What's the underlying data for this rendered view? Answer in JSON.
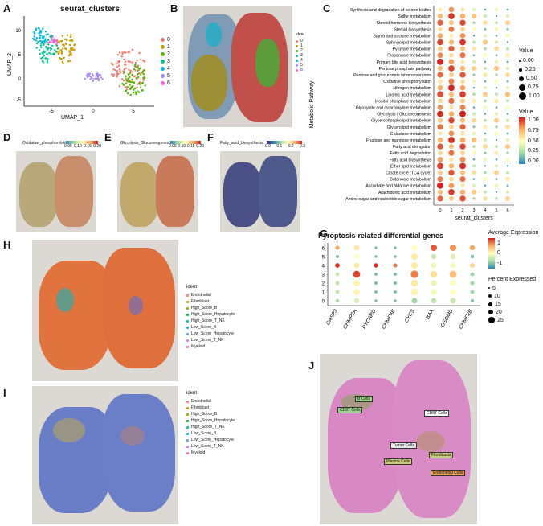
{
  "panels": {
    "A": "A",
    "B": "B",
    "C": "C",
    "D": "D",
    "E": "E",
    "F": "F",
    "G": "G",
    "H": "H",
    "I": "I",
    "J": "J"
  },
  "umap": {
    "title": "seurat_clusters",
    "xlabel": "UMAP_1",
    "ylabel": "UMAP_2",
    "xticks": [
      "-5",
      "0",
      "5"
    ],
    "yticks": [
      "10",
      "5",
      "0",
      "-5"
    ],
    "clusters": [
      {
        "label": "0",
        "color": "#f8766d"
      },
      {
        "label": "1",
        "color": "#c49a00"
      },
      {
        "label": "2",
        "color": "#53b400"
      },
      {
        "label": "3",
        "color": "#00c094"
      },
      {
        "label": "4",
        "color": "#00b6eb"
      },
      {
        "label": "5",
        "color": "#a58aff"
      },
      {
        "label": "6",
        "color": "#fb61d7"
      }
    ]
  },
  "spatial_b": {
    "legend_title": "ident",
    "legend": [
      "0",
      "1",
      "2",
      "3",
      "4",
      "5",
      "6"
    ]
  },
  "dotplot_c": {
    "ylabel": "Metabolic Pathway",
    "xlabel": "seurat_clusters",
    "clusters": [
      "0",
      "1",
      "2",
      "3",
      "4",
      "5",
      "6"
    ],
    "pathways": [
      "Synthesis and degradation of ketone bodies",
      "Sulfur metabolism",
      "Steroid hormone biosynthesis",
      "Steroid biosynthesis",
      "Starch and sucrose metabolism",
      "Sphingolipid metabolism",
      "Pyruvate metabolism",
      "Propanoate metabolism",
      "Primary bile acid biosynthesis",
      "Pentose phosphate pathway",
      "Pentose and glucuronate interconversions",
      "Oxidative phosphorylation",
      "Nitrogen metabolism",
      "Linoleic acid metabolism",
      "Inositol phosphate metabolism",
      "Glyoxylate and dicarboxylate metabolism",
      "Glycolysis / Gluconeogenesis",
      "Glycerophospholipid metabolism",
      "Glycerolipid metabolism",
      "Galactose metabolism",
      "Fructose and mannose metabolism",
      "Fatty acid elongation",
      "Fatty acid degradation",
      "Fatty acid biosynthesis",
      "Ether lipid metabolism",
      "Citrate cycle (TCA cycle)",
      "Butanoate metabolism",
      "Ascorbate and aldarate metabolism",
      "Arachidonic acid metabolism",
      "Amino sugar and nucleotide sugar metabolism"
    ],
    "size_legend_title": "Value",
    "size_legend": [
      "0.00",
      "0.25",
      "0.50",
      "0.75",
      "1.00"
    ],
    "color_legend_title": "Value",
    "color_legend": [
      "1.00",
      "0.75",
      "0.50",
      "0.25",
      "0.00"
    ]
  },
  "feature_maps": {
    "D": {
      "title": "Oxidative_phosphorylation",
      "ticks": [
        "0.05",
        "0.10",
        "0.15",
        "0.20"
      ]
    },
    "E": {
      "title": "Glycolysis_Gluconeogenesis",
      "ticks": [
        "0.05",
        "0.10",
        "0.15",
        "0.20"
      ]
    },
    "F": {
      "title": "Fatty_acid_biosynthesis",
      "ticks": [
        "0.0",
        "0.1",
        "0.2",
        "0.3"
      ]
    }
  },
  "pyroptosis": {
    "title": "Pyroptosis-related differential genes",
    "genes": [
      "CASP3",
      "CHMP2A",
      "PYCARD",
      "CHMP4B",
      "CYCS",
      "BAX",
      "GSDMD",
      "CHMP2B"
    ],
    "clusters": [
      "6",
      "5",
      "4",
      "3",
      "2",
      "1",
      "0"
    ],
    "avg_title": "Average Expression",
    "avg_ticks": [
      "1",
      "0",
      "-1"
    ],
    "pct_title": "Percent Expressed",
    "pct_ticks": [
      "5",
      "10",
      "15",
      "20",
      "25"
    ]
  },
  "score_legend": {
    "title": "ident",
    "items": [
      {
        "label": "Endothelial",
        "color": "#f8766d"
      },
      {
        "label": "Fibroblast",
        "color": "#d39200"
      },
      {
        "label": "High_Score_B",
        "color": "#93aa00"
      },
      {
        "label": "High_Score_Hepatocyte",
        "color": "#00ba38"
      },
      {
        "label": "High_Score_T_NK",
        "color": "#00c19f"
      },
      {
        "label": "Low_Score_B",
        "color": "#00b9e3"
      },
      {
        "label": "Low_Score_Hepatocyte",
        "color": "#619cff"
      },
      {
        "label": "Low_Score_T_NK",
        "color": "#db72fb"
      },
      {
        "label": "Myeloid",
        "color": "#ff61c3"
      }
    ]
  },
  "annotations_j": [
    "B Cells",
    "CD8T Cells",
    "CD8T Cells",
    "Tumor Cells",
    "Fibroblasts",
    "Plasma Cells",
    "Endothelial Cells"
  ],
  "chart_data": [
    {
      "type": "heatmap",
      "title": "Pyroptosis-related differential genes",
      "xlabel": "",
      "ylabel": "",
      "categories": [
        "CASP3",
        "CHMP2A",
        "PYCARD",
        "CHMP4B",
        "CYCS",
        "BAX",
        "GSDMD",
        "CHMP2B"
      ],
      "rows": [
        "6",
        "5",
        "4",
        "3",
        "2",
        "1",
        "0"
      ],
      "values": [
        [
          0.8,
          0.2,
          -1.0,
          -1.0,
          0.0,
          1.2,
          0.9,
          0.8
        ],
        [
          -1.0,
          0.0,
          -1.0,
          -1.0,
          0.2,
          -0.5,
          -0.3,
          -1.0
        ],
        [
          1.4,
          0.2,
          1.4,
          1.0,
          0.2,
          -0.2,
          -0.1,
          0.4
        ],
        [
          -0.5,
          1.3,
          -1.0,
          -1.0,
          1.0,
          0.3,
          0.6,
          -0.8
        ],
        [
          -0.6,
          0.1,
          -1.0,
          -1.0,
          0.2,
          -0.2,
          0.0,
          -0.8
        ],
        [
          -0.6,
          0.1,
          -1.0,
          -1.0,
          0.1,
          -0.1,
          0.0,
          -0.8
        ],
        [
          -0.8,
          -0.3,
          -1.0,
          -1.0,
          -0.8,
          -0.6,
          -0.5,
          -1.0
        ]
      ],
      "percent": [
        [
          6,
          12,
          2,
          2,
          15,
          18,
          18,
          10
        ],
        [
          3,
          10,
          2,
          2,
          18,
          10,
          12,
          4
        ],
        [
          8,
          12,
          7,
          6,
          18,
          12,
          12,
          8
        ],
        [
          5,
          22,
          3,
          3,
          25,
          20,
          22,
          6
        ],
        [
          5,
          18,
          3,
          3,
          22,
          16,
          18,
          6
        ],
        [
          5,
          16,
          3,
          3,
          22,
          15,
          16,
          6
        ],
        [
          4,
          12,
          2,
          2,
          14,
          12,
          14,
          4
        ]
      ]
    }
  ]
}
